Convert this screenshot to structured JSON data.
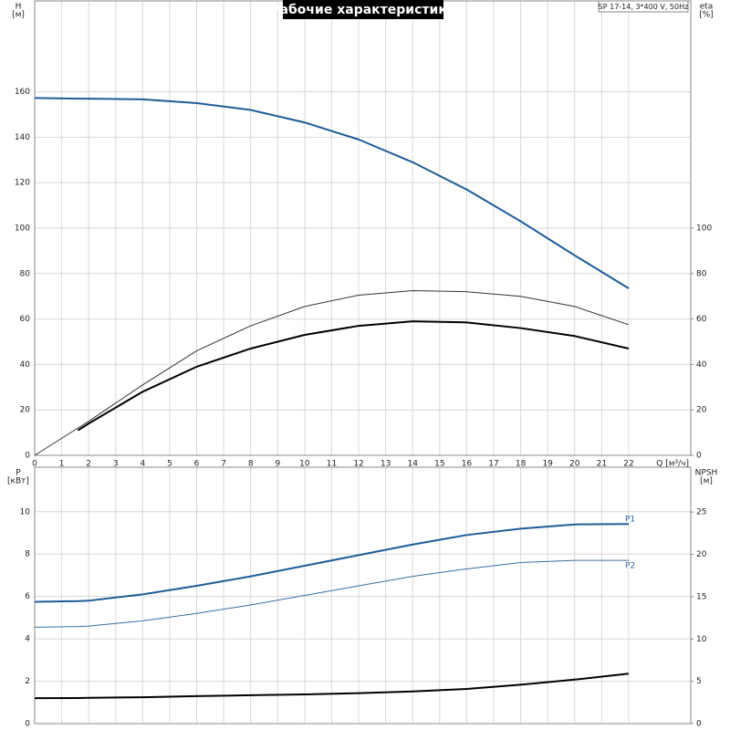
{
  "chart_data": [
    {
      "type": "line",
      "title": "Рабочие характеристики",
      "subtitle": "SP 17-14, 3*400 V, 50Hz",
      "y_label": "H",
      "y_unit": "[м]",
      "y2_label": "eta",
      "y2_unit": "[%]",
      "x_label": "Q [м³/ч]",
      "xlim": [
        0,
        24.3
      ],
      "xticks": [
        0,
        1,
        2,
        3,
        4,
        5,
        6,
        7,
        8,
        9,
        10,
        11,
        12,
        13,
        14,
        15,
        16,
        17,
        18,
        19,
        20,
        21,
        22
      ],
      "ylim": [
        0,
        200
      ],
      "yticks": [
        0,
        20,
        40,
        60,
        80,
        100,
        120,
        140,
        160
      ],
      "y2lim": [
        0,
        200
      ],
      "y2ticks": [
        0,
        20,
        40,
        60,
        80,
        100
      ],
      "grid": true,
      "x": [
        0,
        1.6,
        2,
        4,
        6,
        8,
        10,
        12,
        14,
        16,
        18,
        20,
        22
      ],
      "series": [
        {
          "color": "#1f5c9a",
          "line_width": 2,
          "values": [
            157.3,
            157,
            157,
            156.7,
            155,
            152,
            146.5,
            139,
            129,
            117,
            103,
            88,
            73.5
          ]
        },
        {
          "color": "#333333",
          "line_width": 1,
          "axis": "y2",
          "values": [
            0,
            12,
            15,
            31,
            46,
            57,
            65.5,
            70.5,
            72.5,
            72,
            70,
            65.5,
            57.5
          ]
        },
        {
          "color": "#000000",
          "line_width": 2,
          "axis": "y2",
          "values": [
            null,
            11,
            14,
            28,
            39,
            47,
            53,
            57,
            59,
            58.5,
            56,
            52.5,
            47
          ]
        }
      ]
    },
    {
      "type": "line",
      "y_label": "P",
      "y_unit": "[кВт]",
      "y2_label": "NPSH",
      "y2_unit": "[м]",
      "xlim": [
        0,
        24.3
      ],
      "ylim": [
        0,
        12.1
      ],
      "yticks": [
        0,
        2,
        4,
        6,
        8,
        10
      ],
      "y2lim": [
        0,
        30.3
      ],
      "y2ticks": [
        0,
        5,
        10,
        15,
        20,
        25
      ],
      "grid": true,
      "x": [
        0,
        1.6,
        2,
        4,
        6,
        8,
        10,
        12,
        14,
        16,
        18,
        20,
        22
      ],
      "series": [
        {
          "name": "P1",
          "color": "#1f5c9a",
          "line_width": 2,
          "values": [
            5.75,
            5.78,
            5.8,
            6.1,
            6.5,
            6.95,
            7.45,
            7.95,
            8.45,
            8.9,
            9.2,
            9.4,
            9.42
          ]
        },
        {
          "name": "P2",
          "color": "#3a6ea5",
          "line_width": 1,
          "values": [
            4.55,
            4.58,
            4.6,
            4.85,
            5.2,
            5.6,
            6.05,
            6.5,
            6.95,
            7.3,
            7.6,
            7.7,
            7.7
          ]
        },
        {
          "color": "#000000",
          "line_width": 2,
          "axis": "y2",
          "values": [
            3.0,
            3.02,
            3.05,
            3.12,
            3.25,
            3.35,
            3.45,
            3.6,
            3.8,
            4.1,
            4.6,
            5.2,
            5.9
          ]
        }
      ]
    }
  ]
}
